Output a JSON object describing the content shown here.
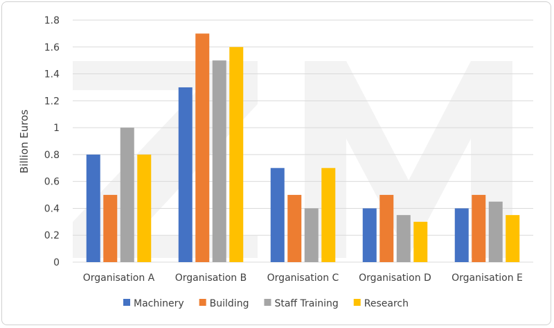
{
  "chart_data": {
    "type": "bar",
    "title": "",
    "xlabel": "",
    "ylabel": "Billion Euros",
    "ylim": [
      0,
      1.8
    ],
    "yticks": [
      "0",
      "0.2",
      "0.4",
      "0.6",
      "0.8",
      "1",
      "1.2",
      "1.4",
      "1.6",
      "1.8"
    ],
    "grid": true,
    "legend_position": "bottom",
    "categories": [
      "Organisation A",
      "Organisation B",
      "Organisation C",
      "Organisation D",
      "Organisation E"
    ],
    "series": [
      {
        "name": "Machinery",
        "color": "#4472c4",
        "values": [
          0.8,
          1.3,
          0.7,
          0.4,
          0.4
        ]
      },
      {
        "name": "Building",
        "color": "#ed7d31",
        "values": [
          0.5,
          1.7,
          0.5,
          0.5,
          0.5
        ]
      },
      {
        "name": "Staff Training",
        "color": "#a5a5a5",
        "values": [
          1.0,
          1.5,
          0.4,
          0.35,
          0.45
        ]
      },
      {
        "name": "Research",
        "color": "#ffc000",
        "values": [
          0.8,
          1.6,
          0.7,
          0.3,
          0.35
        ]
      }
    ],
    "watermark": "ZM"
  }
}
